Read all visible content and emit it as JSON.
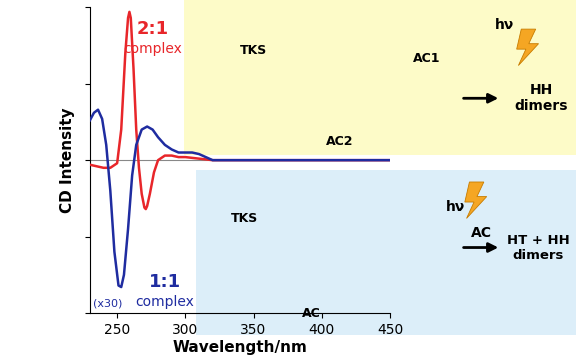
{
  "chart_data": {
    "type": "line",
    "x_label": "Wavelength/nm",
    "y_label": "CD Intensity",
    "xlim": [
      230,
      450
    ],
    "xticks": [
      250,
      300,
      350,
      400,
      450
    ],
    "ylim": [
      -1,
      1
    ],
    "yticks": [
      -1,
      -0.5,
      0,
      0.5,
      1
    ],
    "tick_labels": "x",
    "grid": false,
    "series": [
      {
        "name": "2:1\ncomplex",
        "color": "#e8262a",
        "x": [
          230,
          235,
          240,
          245,
          250,
          253,
          256,
          258,
          259,
          260,
          262,
          264,
          266,
          268,
          270,
          271,
          272,
          274,
          277,
          280,
          285,
          290,
          295,
          300,
          310,
          320,
          330,
          350,
          400,
          450
        ],
        "values": [
          -0.03,
          -0.04,
          -0.05,
          -0.05,
          -0.02,
          0.2,
          0.7,
          0.93,
          0.97,
          0.93,
          0.6,
          0.2,
          -0.05,
          -0.22,
          -0.31,
          -0.32,
          -0.3,
          -0.22,
          -0.08,
          0.0,
          0.03,
          0.03,
          0.02,
          0.02,
          0.01,
          0.0,
          0.0,
          0.0,
          0.0,
          0.0
        ]
      },
      {
        "name": "1:1\ncomplex",
        "color": "#1f2ca0",
        "x": [
          230,
          233,
          236,
          239,
          242,
          245,
          248,
          251,
          253,
          255,
          258,
          261,
          264,
          268,
          272,
          276,
          280,
          285,
          290,
          295,
          300,
          305,
          310,
          315,
          320,
          330,
          350,
          400,
          450
        ],
        "values": [
          0.26,
          0.31,
          0.33,
          0.27,
          0.1,
          -0.2,
          -0.6,
          -0.82,
          -0.83,
          -0.75,
          -0.45,
          -0.1,
          0.1,
          0.2,
          0.22,
          0.2,
          0.15,
          0.1,
          0.07,
          0.05,
          0.05,
          0.05,
          0.04,
          0.02,
          0.0,
          0.0,
          0.0,
          0.0,
          0.0
        ]
      }
    ],
    "annotations": [
      "(x30)",
      "TKS",
      "AC1",
      "AC2",
      "hν",
      "HH\ndimers",
      "TKS",
      "AC",
      "hν",
      "AC",
      "HT + HH\ndimers"
    ]
  }
}
